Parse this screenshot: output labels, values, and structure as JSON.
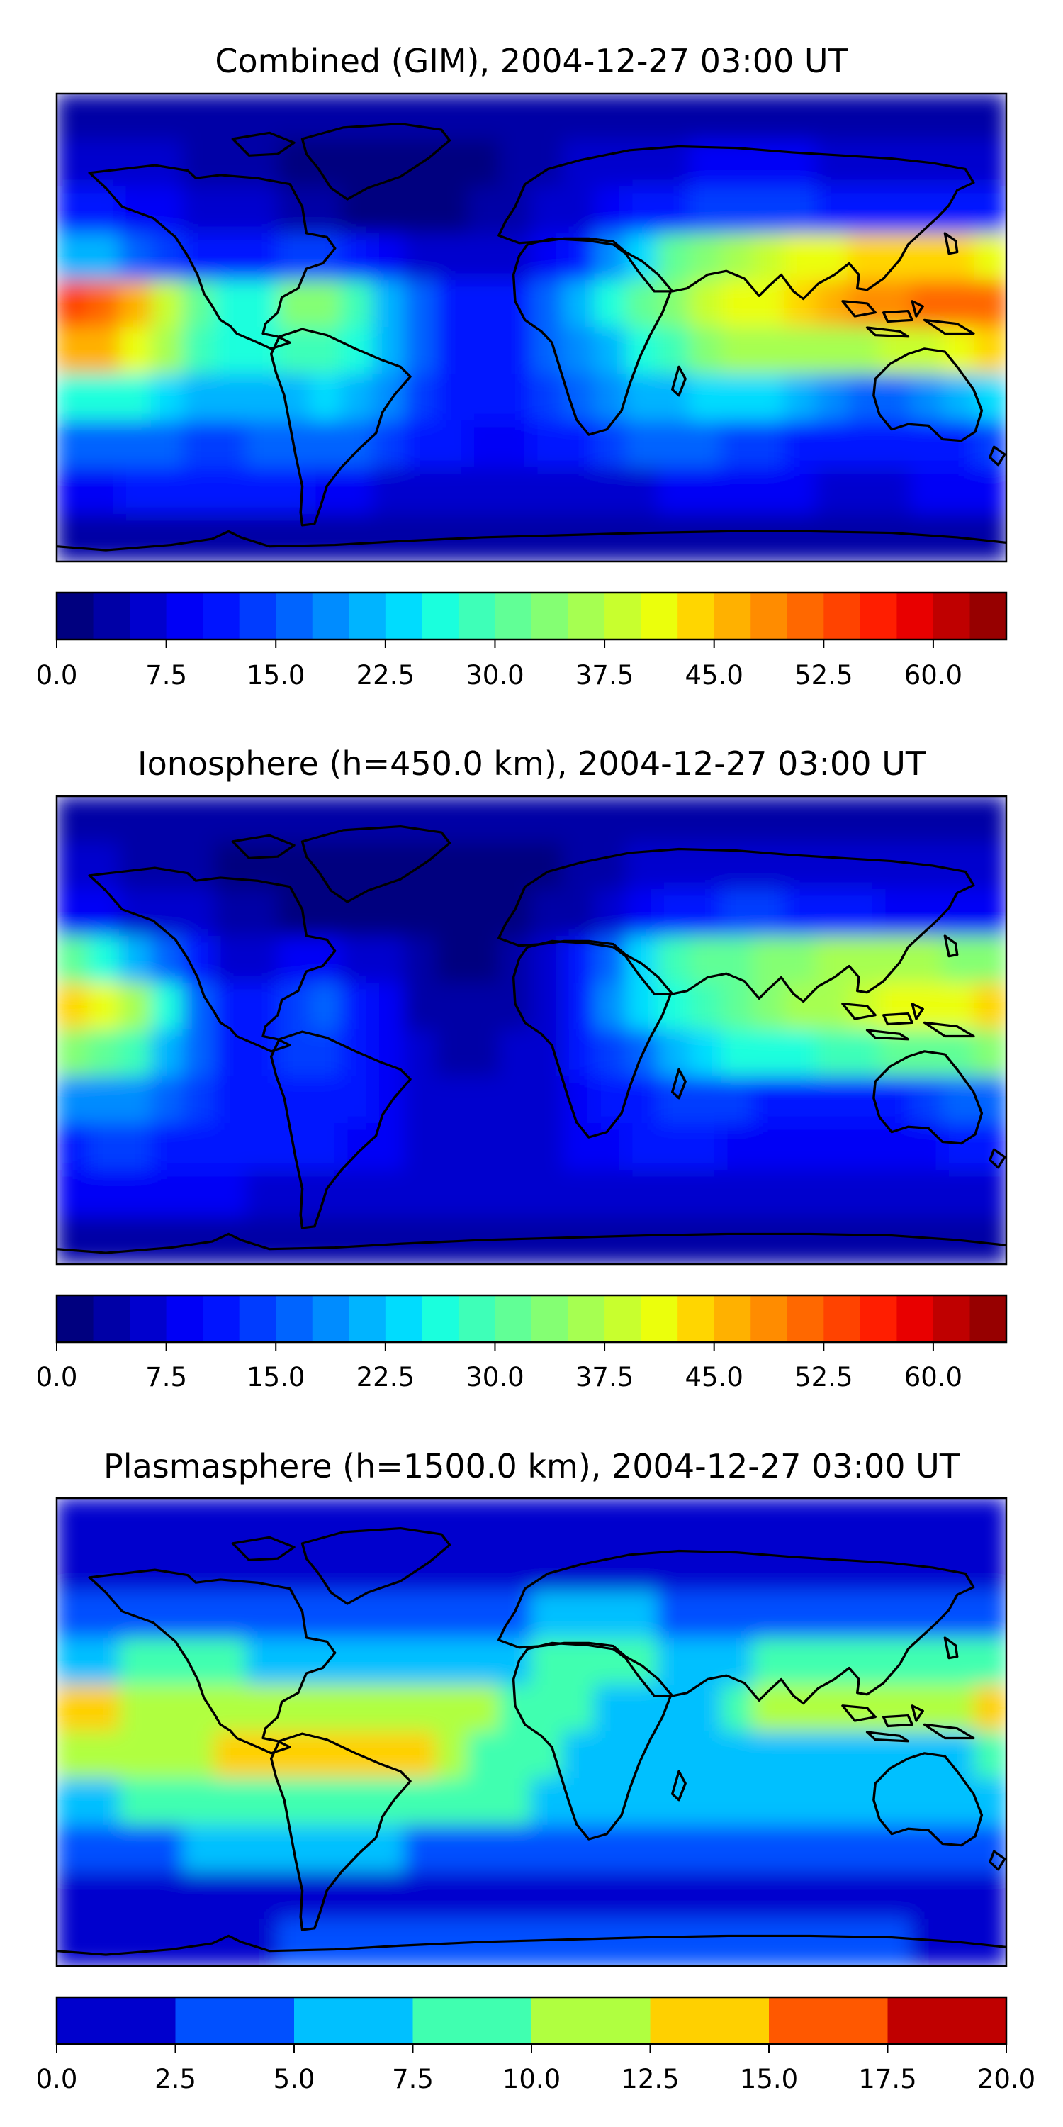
{
  "chart_data": [
    {
      "type": "heatmap",
      "title": "Combined (GIM), 2004-12-27 03:00 UT",
      "colorbar": {
        "min": 0,
        "max": 65,
        "levels": 26,
        "tick_values": [
          0,
          7.5,
          15,
          22.5,
          30,
          37.5,
          45,
          52.5,
          60
        ],
        "tick_labels": [
          "0.0",
          "7.5",
          "15.0",
          "22.5",
          "30.0",
          "37.5",
          "45.0",
          "52.5",
          "60.0"
        ],
        "colors": [
          "#00007f",
          "#0000a6",
          "#0000ce",
          "#0000f6",
          "#0014ff",
          "#003cff",
          "#0064ff",
          "#008cff",
          "#00b4ff",
          "#00dcfe",
          "#1affdd",
          "#3effb8",
          "#61ff96",
          "#84ff73",
          "#a6ff51",
          "#c8ff2e",
          "#ebff0c",
          "#ffd600",
          "#ffb100",
          "#ff8c00",
          "#ff6800",
          "#ff4300",
          "#ff1e00",
          "#e80000",
          "#bf0000",
          "#970000"
        ]
      },
      "values": [
        [
          3,
          3,
          3,
          3,
          3,
          3,
          3,
          3,
          3,
          4,
          4,
          4,
          4,
          4,
          4,
          4,
          4,
          4,
          4,
          4,
          4,
          4,
          4,
          4,
          4,
          3,
          3,
          3,
          3,
          3
        ],
        [
          6,
          6,
          5,
          5,
          4,
          3,
          3,
          2,
          1,
          1,
          1,
          1,
          1,
          2,
          3,
          4,
          5,
          6,
          6,
          7,
          8,
          8,
          8,
          8,
          7,
          7,
          6,
          6,
          6,
          6
        ],
        [
          11,
          10,
          9,
          8,
          7,
          6,
          5,
          4,
          3,
          2,
          2,
          2,
          2,
          3,
          4,
          5,
          6,
          8,
          10,
          12,
          13,
          14,
          14,
          13,
          12,
          11,
          10,
          10,
          10,
          11
        ],
        [
          22,
          20,
          17,
          14,
          12,
          11,
          12,
          14,
          14,
          12,
          9,
          7,
          6,
          5,
          6,
          8,
          12,
          18,
          24,
          30,
          34,
          36,
          38,
          40,
          42,
          43,
          44,
          44,
          43,
          42
        ],
        [
          53,
          51,
          46,
          38,
          30,
          26,
          27,
          33,
          34,
          28,
          20,
          15,
          12,
          11,
          12,
          16,
          21,
          26,
          30,
          34,
          38,
          40,
          42,
          44,
          46,
          48,
          49,
          50,
          51,
          52
        ],
        [
          47,
          45,
          41,
          35,
          29,
          26,
          25,
          28,
          29,
          25,
          20,
          15,
          12,
          11,
          12,
          15,
          18,
          22,
          25,
          29,
          33,
          35,
          36,
          36,
          37,
          37,
          38,
          39,
          41,
          43
        ],
        [
          26,
          26,
          25,
          23,
          21,
          21,
          20,
          22,
          23,
          21,
          18,
          14,
          12,
          11,
          11,
          13,
          15,
          18,
          20,
          22,
          24,
          24,
          23,
          21,
          19,
          17,
          16,
          18,
          20,
          23
        ],
        [
          15,
          15,
          15,
          15,
          14,
          14,
          15,
          17,
          17,
          15,
          13,
          11,
          10,
          9,
          9,
          10,
          12,
          14,
          15,
          15,
          15,
          14,
          13,
          12,
          11,
          10,
          10,
          11,
          12,
          14
        ],
        [
          9,
          9,
          10,
          11,
          11,
          10,
          10,
          10,
          9,
          8,
          7,
          7,
          6,
          6,
          6,
          6,
          6,
          7,
          7,
          8,
          8,
          8,
          8,
          8,
          7,
          7,
          7,
          8,
          8,
          9
        ],
        [
          4,
          4,
          4,
          4,
          4,
          4,
          4,
          4,
          4,
          4,
          4,
          4,
          4,
          4,
          4,
          4,
          4,
          4,
          4,
          4,
          4,
          4,
          4,
          4,
          4,
          4,
          4,
          4,
          4,
          4
        ]
      ]
    },
    {
      "type": "heatmap",
      "title": "Ionosphere  (h=450.0 km), 2004-12-27 03:00 UT",
      "colorbar": {
        "min": 0,
        "max": 65,
        "levels": 26,
        "tick_values": [
          0,
          7.5,
          15,
          22.5,
          30,
          37.5,
          45,
          52.5,
          60
        ],
        "tick_labels": [
          "0.0",
          "7.5",
          "15.0",
          "22.5",
          "30.0",
          "37.5",
          "45.0",
          "52.5",
          "60.0"
        ],
        "colors": [
          "#00007f",
          "#0000a6",
          "#0000ce",
          "#0000f6",
          "#0014ff",
          "#003cff",
          "#0064ff",
          "#008cff",
          "#00b4ff",
          "#00dcfe",
          "#1affdd",
          "#3effb8",
          "#61ff96",
          "#84ff73",
          "#a6ff51",
          "#c8ff2e",
          "#ebff0c",
          "#ffd600",
          "#ffb100",
          "#ff8c00",
          "#ff6800",
          "#ff4300",
          "#ff1e00",
          "#e80000",
          "#bf0000",
          "#970000"
        ]
      },
      "values": [
        [
          4,
          4,
          4,
          4,
          4,
          4,
          3,
          3,
          3,
          3,
          3,
          3,
          3,
          3,
          3,
          3,
          3,
          3,
          3,
          3,
          3,
          3,
          4,
          4,
          4,
          4,
          4,
          4,
          4,
          4
        ],
        [
          5,
          5,
          4,
          4,
          3,
          2,
          1,
          1,
          1,
          1,
          1,
          1,
          1,
          1,
          1,
          2,
          3,
          4,
          5,
          6,
          7,
          7,
          7,
          6,
          5,
          5,
          5,
          5,
          5,
          5
        ],
        [
          8,
          8,
          7,
          6,
          5,
          4,
          3,
          2,
          1,
          1,
          1,
          1,
          1,
          1,
          2,
          3,
          4,
          6,
          8,
          10,
          12,
          13,
          13,
          12,
          11,
          10,
          9,
          8,
          8,
          8
        ],
        [
          30,
          27,
          22,
          16,
          10,
          7,
          6,
          8,
          9,
          7,
          5,
          3,
          2,
          2,
          3,
          5,
          10,
          17,
          23,
          28,
          30,
          32,
          33,
          34,
          35,
          36,
          36,
          35,
          34,
          33
        ],
        [
          44,
          41,
          35,
          26,
          17,
          12,
          11,
          14,
          15,
          12,
          8,
          4,
          3,
          3,
          4,
          7,
          12,
          19,
          23,
          26,
          29,
          31,
          33,
          35,
          37,
          39,
          40,
          41,
          42,
          43
        ],
        [
          34,
          32,
          28,
          22,
          16,
          12,
          11,
          13,
          13,
          11,
          8,
          5,
          4,
          4,
          5,
          7,
          10,
          14,
          17,
          20,
          23,
          25,
          26,
          27,
          28,
          29,
          30,
          31,
          32,
          33
        ],
        [
          19,
          19,
          18,
          16,
          14,
          12,
          11,
          11,
          11,
          10,
          8,
          6,
          5,
          5,
          5,
          7,
          9,
          11,
          12,
          13,
          13,
          13,
          12,
          11,
          10,
          10,
          11,
          13,
          15,
          17
        ],
        [
          12,
          13,
          13,
          12,
          11,
          10,
          10,
          10,
          10,
          9,
          8,
          7,
          6,
          6,
          6,
          7,
          8,
          9,
          10,
          10,
          10,
          9,
          8,
          8,
          8,
          8,
          8,
          9,
          10,
          11
        ],
        [
          8,
          9,
          9,
          9,
          9,
          8,
          7,
          7,
          6,
          6,
          5,
          5,
          5,
          5,
          5,
          5,
          5,
          5,
          5,
          5,
          5,
          5,
          5,
          5,
          5,
          5,
          6,
          6,
          7,
          7
        ],
        [
          4,
          4,
          4,
          4,
          4,
          4,
          4,
          3,
          3,
          3,
          3,
          3,
          3,
          3,
          3,
          3,
          3,
          3,
          3,
          3,
          4,
          4,
          4,
          4,
          4,
          4,
          4,
          4,
          4,
          4
        ]
      ]
    },
    {
      "type": "heatmap",
      "title": "Plasmasphere (h=1500.0 km), 2004-12-27 03:00 UT",
      "colorbar": {
        "min": 0,
        "max": 20,
        "levels": 8,
        "tick_values": [
          0,
          2.5,
          5,
          7.5,
          10,
          12.5,
          15,
          17.5,
          20
        ],
        "tick_labels": [
          "0.0",
          "2.5",
          "5.0",
          "7.5",
          "10.0",
          "12.5",
          "15.0",
          "17.5",
          "20.0"
        ],
        "colors": [
          "#0000cd",
          "#0050ff",
          "#00c0ff",
          "#40ffb0",
          "#b0ff40",
          "#ffd000",
          "#ff5800",
          "#c00000"
        ]
      },
      "values": [
        [
          1.2,
          1.2,
          1.2,
          1.2,
          1.2,
          1.2,
          1.2,
          1.2,
          1.2,
          1.2,
          1.2,
          1.2,
          1.2,
          1.2,
          1.2,
          1.2,
          1.2,
          1.2,
          1.2,
          1.2,
          1.2,
          1.2,
          1.2,
          1.2,
          1.2,
          1.2,
          1.2,
          1.2,
          1.2,
          1.2
        ],
        [
          1.8,
          1.8,
          1.8,
          1.8,
          1.8,
          1.8,
          1.8,
          1.8,
          1.8,
          1.8,
          1.8,
          1.8,
          1.8,
          1.8,
          1.8,
          1.8,
          1.8,
          1.8,
          1.8,
          1.8,
          1.8,
          1.8,
          1.8,
          1.8,
          1.8,
          1.8,
          1.8,
          1.8,
          1.8,
          1.8
        ],
        [
          3.8,
          3.8,
          3.8,
          3.8,
          3.8,
          3.8,
          3.8,
          3.8,
          3.8,
          3.8,
          3.8,
          3.8,
          3.8,
          3.8,
          4.5,
          5.5,
          6.2,
          6.2,
          5.5,
          4.5,
          3.8,
          3.8,
          3.8,
          3.8,
          3.8,
          3.8,
          3.8,
          3.8,
          3.8,
          3.8
        ],
        [
          6.5,
          6.5,
          7.5,
          8.5,
          8.5,
          7.5,
          6.5,
          6.5,
          6.5,
          6.5,
          6.5,
          6.5,
          6.5,
          6.5,
          6.5,
          7.5,
          8.5,
          8.5,
          7.5,
          6.5,
          6.5,
          6.5,
          7.5,
          8.5,
          9.5,
          9.5,
          9.5,
          9.5,
          9.5,
          9.0
        ],
        [
          13.5,
          13.5,
          12.0,
          10.5,
          10.5,
          11.0,
          11.5,
          11.0,
          10.5,
          10.5,
          11.0,
          11.5,
          11.0,
          10.5,
          9.5,
          8.5,
          7.5,
          6.5,
          6.0,
          6.0,
          6.5,
          8.0,
          10.5,
          11.0,
          11.0,
          11.0,
          11.0,
          11.0,
          12.0,
          13.5
        ],
        [
          11.5,
          11.5,
          11.0,
          10.5,
          10.5,
          13.5,
          14.5,
          14.0,
          13.5,
          13.5,
          14.0,
          13.5,
          11.0,
          9.0,
          8.0,
          7.5,
          7.0,
          6.5,
          6.5,
          6.5,
          6.5,
          6.5,
          6.5,
          6.5,
          6.5,
          6.5,
          6.5,
          6.5,
          6.5,
          9.0
        ],
        [
          6.5,
          6.5,
          7.5,
          8.5,
          9.0,
          9.0,
          9.0,
          9.0,
          8.5,
          8.5,
          8.5,
          8.5,
          8.5,
          8.0,
          7.5,
          7.0,
          6.5,
          6.0,
          6.0,
          6.0,
          6.0,
          6.0,
          6.0,
          6.0,
          6.0,
          6.0,
          6.0,
          6.0,
          6.0,
          6.0
        ],
        [
          3.5,
          3.5,
          4.0,
          4.5,
          5.5,
          6.0,
          6.0,
          6.0,
          6.0,
          5.5,
          5.0,
          4.5,
          4.0,
          4.0,
          4.0,
          4.0,
          4.0,
          4.0,
          4.0,
          4.0,
          4.0,
          4.0,
          4.0,
          4.0,
          4.0,
          4.0,
          4.0,
          4.0,
          4.0,
          3.0
        ],
        [
          1.5,
          1.5,
          1.5,
          1.5,
          1.5,
          1.8,
          2.0,
          2.0,
          1.8,
          1.5,
          1.5,
          1.5,
          1.5,
          1.5,
          1.5,
          1.5,
          1.5,
          1.5,
          1.5,
          1.5,
          1.5,
          1.5,
          1.5,
          1.5,
          1.5,
          1.5,
          1.5,
          1.5,
          1.5,
          1.5
        ],
        [
          1.2,
          1.2,
          1.2,
          1.2,
          1.2,
          1.2,
          2.0,
          3.0,
          3.0,
          3.0,
          3.0,
          3.0,
          3.0,
          3.0,
          3.0,
          3.0,
          3.0,
          3.0,
          3.0,
          3.0,
          3.0,
          3.0,
          3.0,
          3.0,
          3.0,
          3.0,
          3.0,
          2.0,
          1.2,
          1.2
        ]
      ]
    }
  ]
}
